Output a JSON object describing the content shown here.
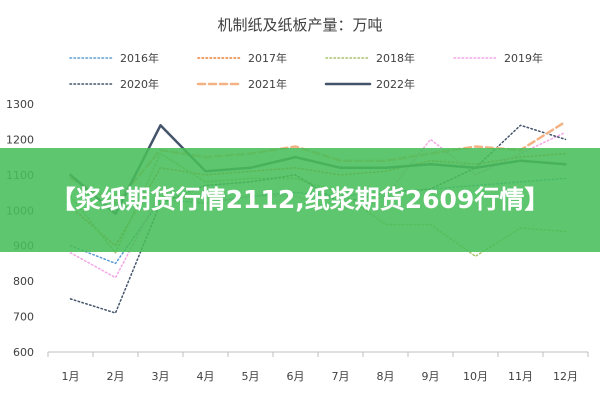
{
  "banner": {
    "headline": "【浆纸期货行情2112,纸浆期货2609行情】"
  },
  "chart_data": {
    "type": "line",
    "title": "机制纸及纸板产量：万吨",
    "xlabel": "",
    "ylabel": "",
    "categories": [
      "1月",
      "2月",
      "3月",
      "4月",
      "5月",
      "6月",
      "7月",
      "8月",
      "9月",
      "10月",
      "11月",
      "12月"
    ],
    "ylim": [
      600,
      1300
    ],
    "yticks": [
      600,
      700,
      800,
      900,
      1000,
      1100,
      1200,
      1300
    ],
    "grid": false,
    "legend_position": "top",
    "series": [
      {
        "name": "2016年",
        "color": "#5b9bd5",
        "dash": "1.5,2.5",
        "width": 1.5,
        "values": [
          900,
          850,
          1030,
          1020,
          1040,
          1050,
          1040,
          1050,
          1060,
          1070,
          1080,
          1090
        ]
      },
      {
        "name": "2017年",
        "color": "#ed7d31",
        "dash": "1.5,2.5",
        "width": 1.5,
        "values": [
          1010,
          900,
          1120,
          1100,
          1110,
          1120,
          1100,
          1110,
          1140,
          1130,
          1150,
          1160
        ]
      },
      {
        "name": "2018年",
        "color": "#a5c26b",
        "dash": "1.5,2.5",
        "width": 1.5,
        "values": [
          1040,
          880,
          1160,
          1080,
          1090,
          1090,
          1050,
          960,
          960,
          870,
          950,
          940
        ]
      },
      {
        "name": "2019年",
        "color": "#f4a6e6",
        "dash": "1.5,2.5",
        "width": 1.5,
        "values": [
          880,
          810,
          1050,
          1020,
          1040,
          1040,
          1000,
          1040,
          1200,
          1100,
          1160,
          1220
        ]
      },
      {
        "name": "2020年",
        "color": "#44546a",
        "dash": "1.5,2.5",
        "width": 1.5,
        "values": [
          750,
          710,
          1020,
          1070,
          1080,
          1100,
          1020,
          1050,
          1060,
          1120,
          1240,
          1200
        ]
      },
      {
        "name": "2021年",
        "color": "#f4b183",
        "dash": "7,4",
        "width": 2.5,
        "values": [
          1090,
          1020,
          1170,
          1150,
          1160,
          1180,
          1140,
          1140,
          1160,
          1180,
          1170,
          1250
        ]
      },
      {
        "name": "2022年",
        "color": "#44546a",
        "dash": "",
        "width": 2.5,
        "values": [
          1100,
          990,
          1240,
          1110,
          1120,
          1150,
          1120,
          1120,
          1130,
          1120,
          1140,
          1130
        ]
      }
    ]
  }
}
